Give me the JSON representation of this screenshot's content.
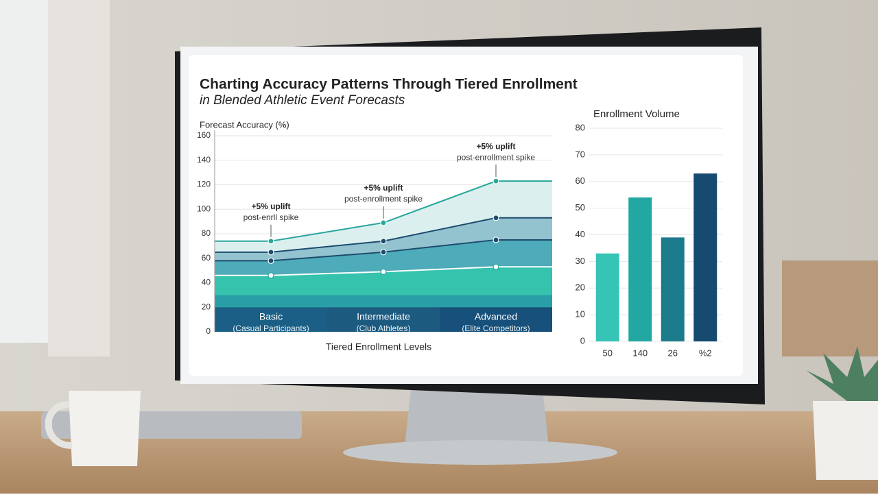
{
  "chart_data": [
    {
      "type": "area",
      "title": "Charting Accuracy Patterns Through Tiered Enrollment",
      "subtitle": "in Blended Athletic Event Forecasts",
      "y_label": "Forecast Accuracy (%)",
      "x_label": "Tiered Enrollment Levels",
      "categories": [
        "Basic",
        "Intermediate",
        "Advanced"
      ],
      "category_notes": [
        "(Casual Participants)",
        "(Club Athletes)",
        "(Elite Competitors)"
      ],
      "series": [
        {
          "color": "#27a79a",
          "fill": "#dcefef",
          "values": [
            74,
            89,
            123
          ]
        },
        {
          "color": "#1d4b6e",
          "fill": "#93c3cf",
          "values": [
            65,
            74,
            93
          ]
        },
        {
          "color": "#1d4b6e",
          "fill": "#4eabb9",
          "values": [
            58,
            65,
            75
          ]
        },
        {
          "color": "#ffffff",
          "fill": "#35c3ae",
          "values": [
            46,
            49,
            53
          ]
        }
      ],
      "annotations": [
        {
          "title": "+5% uplift",
          "text": "post-enrll spike"
        },
        {
          "title": "+5% uplift",
          "text": "post-enrollment spike"
        },
        {
          "title": "+5% uplift",
          "text": "post-enrollment spike"
        }
      ],
      "ylim": [
        0,
        160
      ],
      "yticks": [
        0,
        20,
        40,
        60,
        80,
        100,
        120,
        140,
        160
      ],
      "grid": true
    },
    {
      "type": "bar",
      "title": "Enrollment Volume",
      "categories": [
        "50",
        "140",
        "26",
        "%2"
      ],
      "values": [
        33,
        54,
        39,
        63
      ],
      "colors": [
        "#35c4b6",
        "#22a8a0",
        "#1b7b8b",
        "#164a6f"
      ],
      "ylim": [
        0,
        80
      ],
      "yticks": [
        0,
        10,
        20,
        30,
        40,
        50,
        60,
        70,
        80
      ],
      "grid": true
    }
  ]
}
